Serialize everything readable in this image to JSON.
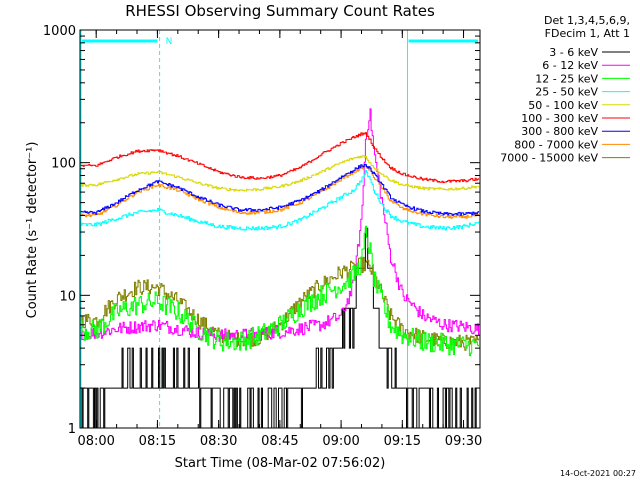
{
  "chart_data": {
    "type": "line",
    "title": "RHESSI Observing Summary Count Rates",
    "xlabel": "Start Time (08-Mar-02 07:56:02)",
    "ylabel": "Count Rate (s⁻¹ detector⁻¹)",
    "y_scale": "log",
    "ylim": [
      1,
      1000
    ],
    "xlim_minutes_after_start": [
      0,
      98
    ],
    "x_ticks": [
      "08:00",
      "08:15",
      "08:30",
      "08:45",
      "09:00",
      "09:15",
      "09:30"
    ],
    "y_ticks": [
      "1",
      "10",
      "100",
      "1000"
    ],
    "grid": false,
    "legend_placement": "right",
    "legend_header": [
      "Det 1,3,4,5,6,9,",
      "FDecim 1, Att 1"
    ],
    "timestamp": "14-Oct-2021 00:27",
    "flag_label": "N",
    "night_intervals": [
      [
        0,
        19.5
      ],
      [
        80,
        98
      ]
    ],
    "x": [
      "08:00",
      "08:05",
      "08:10",
      "08:15",
      "08:20",
      "08:25",
      "08:30",
      "08:35",
      "08:40",
      "08:45",
      "08:50",
      "08:55",
      "09:00",
      "09:03",
      "09:05",
      "09:06",
      "09:07",
      "09:08",
      "09:10",
      "09:12",
      "09:15",
      "09:20",
      "09:25",
      "09:30",
      "09:33"
    ],
    "series": [
      {
        "name": "3 - 6 keV",
        "color": "#000000",
        "values": [
          1.5,
          2.2,
          2.4,
          2.5,
          2.4,
          2,
          1.5,
          1.3,
          1.3,
          1.6,
          2,
          2.5,
          4,
          8,
          16,
          22,
          14,
          9,
          5,
          3,
          2,
          1.5,
          1.2,
          1.1,
          1
        ]
      },
      {
        "name": "6 - 12 keV",
        "color": "#ff00ff",
        "values": [
          5.2,
          5.6,
          5.8,
          6,
          5.6,
          5.2,
          5,
          5,
          5.1,
          5.3,
          5.6,
          6,
          7,
          12,
          40,
          160,
          240,
          120,
          50,
          20,
          10,
          7,
          6,
          5.8,
          5.6
        ]
      },
      {
        "name": "12 - 25 keV",
        "color": "#00ff00",
        "values": [
          5.5,
          7.5,
          8.5,
          9,
          7.5,
          5.5,
          4.5,
          4.5,
          5,
          6,
          8,
          10,
          12,
          14,
          18,
          30,
          22,
          13,
          9,
          6,
          5,
          4.5,
          4.3,
          4.2,
          4.2
        ]
      },
      {
        "name": "25 - 50 keV",
        "color": "#00ffff",
        "values": [
          34,
          38,
          42,
          44,
          40,
          36,
          33,
          32,
          32,
          33,
          37,
          45,
          55,
          62,
          75,
          85,
          76,
          62,
          48,
          40,
          36,
          33,
          32,
          33,
          35
        ]
      },
      {
        "name": "50 - 100 keV",
        "color": "#d8d800",
        "values": [
          68,
          75,
          82,
          85,
          78,
          70,
          64,
          62,
          63,
          66,
          73,
          85,
          100,
          108,
          112,
          110,
          100,
          92,
          82,
          74,
          68,
          64,
          63,
          64,
          66
        ]
      },
      {
        "name": "100 - 300 keV",
        "color": "#ff0000",
        "values": [
          95,
          110,
          122,
          125,
          112,
          98,
          85,
          78,
          76,
          80,
          92,
          115,
          140,
          155,
          165,
          165,
          150,
          130,
          108,
          92,
          82,
          75,
          72,
          73,
          75
        ]
      },
      {
        "name": "300 - 800 keV",
        "color": "#0000ff",
        "values": [
          42,
          50,
          62,
          72,
          65,
          55,
          48,
          44,
          44,
          46,
          52,
          62,
          78,
          88,
          95,
          96,
          90,
          82,
          68,
          55,
          48,
          43,
          41,
          41,
          42
        ]
      },
      {
        "name": "800 - 7000 keV",
        "color": "#ff8c00",
        "values": [
          40,
          48,
          60,
          68,
          62,
          53,
          46,
          42,
          42,
          44,
          50,
          60,
          75,
          85,
          92,
          94,
          88,
          78,
          64,
          52,
          45,
          41,
          39,
          39,
          40
        ]
      },
      {
        "name": "7000 - 15000 keV",
        "color": "#808000",
        "values": [
          6.5,
          9.5,
          11.5,
          11.5,
          9,
          6.5,
          5,
          4.6,
          4.8,
          6,
          9,
          12,
          15,
          16,
          17,
          17,
          16,
          14,
          10,
          7,
          5.5,
          4.8,
          4.5,
          4.4,
          4.4
        ]
      }
    ]
  }
}
